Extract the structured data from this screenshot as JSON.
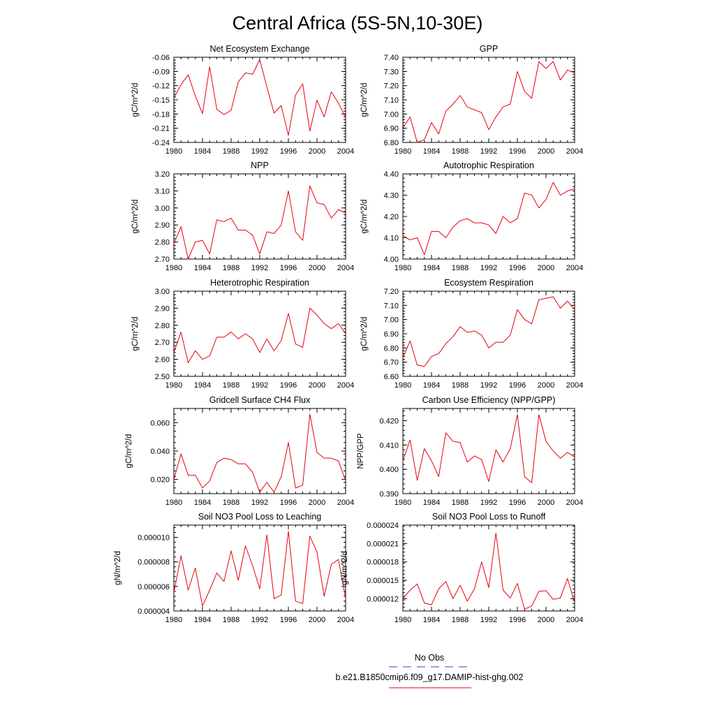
{
  "title": "Central Africa (5S-5N,10-30E)",
  "legend": {
    "entries": [
      {
        "label": "No Obs",
        "color": "#3b3bd1",
        "style": "dashed"
      },
      {
        "label": "b.e21.B1850cmip6.f09_g17.DAMIP-hist-ghg.002",
        "color": "#e8000b",
        "style": "solid"
      }
    ]
  },
  "chart_data": [
    {
      "type": "line",
      "title": "Net Ecosystem Exchange",
      "ylabel": "gC/m^2/d",
      "xlim": [
        1980,
        2004
      ],
      "ylim": [
        -0.24,
        -0.06
      ],
      "xticks": [
        "1980",
        "1984",
        "1988",
        "1992",
        "1996",
        "2000",
        "2004"
      ],
      "yticks": [
        "-0.24",
        "-0.21",
        "-0.18",
        "-0.15",
        "-0.12",
        "-0.09",
        "-0.06"
      ],
      "x": [
        1980,
        1981,
        1982,
        1983,
        1984,
        1985,
        1986,
        1987,
        1988,
        1989,
        1990,
        1991,
        1992,
        1993,
        1994,
        1995,
        1996,
        1997,
        1998,
        1999,
        2000,
        2001,
        2002,
        2003,
        2004
      ],
      "series": [
        {
          "values": [
            -0.146,
            -0.118,
            -0.097,
            -0.142,
            -0.179,
            -0.08,
            -0.17,
            -0.181,
            -0.172,
            -0.112,
            -0.093,
            -0.096,
            -0.065,
            -0.123,
            -0.178,
            -0.162,
            -0.225,
            -0.14,
            -0.116,
            -0.216,
            -0.151,
            -0.186,
            -0.133,
            -0.157,
            -0.187
          ]
        }
      ]
    },
    {
      "type": "line",
      "title": "GPP",
      "ylabel": "gC/m^2/d",
      "xlim": [
        1980,
        2004
      ],
      "ylim": [
        6.8,
        7.4
      ],
      "xticks": [
        "1980",
        "1984",
        "1988",
        "1992",
        "1996",
        "2000",
        "2004"
      ],
      "yticks": [
        "6.80",
        "6.90",
        "7.00",
        "7.10",
        "7.20",
        "7.30",
        "7.40"
      ],
      "x": [
        1980,
        1981,
        1982,
        1983,
        1984,
        1985,
        1986,
        1987,
        1988,
        1989,
        1990,
        1991,
        1992,
        1993,
        1994,
        1995,
        1996,
        1997,
        1998,
        1999,
        2000,
        2001,
        2002,
        2003,
        2004
      ],
      "series": [
        {
          "values": [
            6.9,
            6.98,
            6.8,
            6.82,
            6.94,
            6.86,
            7.02,
            7.07,
            7.13,
            7.05,
            7.03,
            7.01,
            6.89,
            6.98,
            7.05,
            7.07,
            7.3,
            7.16,
            7.11,
            7.37,
            7.32,
            7.37,
            7.24,
            7.31,
            7.29
          ]
        }
      ]
    },
    {
      "type": "line",
      "title": "NPP",
      "ylabel": "gC/m^2/d",
      "xlim": [
        1980,
        2004
      ],
      "ylim": [
        2.7,
        3.2
      ],
      "xticks": [
        "1980",
        "1984",
        "1988",
        "1992",
        "1996",
        "2000",
        "2004"
      ],
      "yticks": [
        "2.70",
        "2.80",
        "2.90",
        "3.00",
        "3.10",
        "3.20"
      ],
      "x": [
        1980,
        1981,
        1982,
        1983,
        1984,
        1985,
        1986,
        1987,
        1988,
        1989,
        1990,
        1991,
        1992,
        1993,
        1994,
        1995,
        1996,
        1997,
        1998,
        1999,
        2000,
        2001,
        2002,
        2003,
        2004
      ],
      "series": [
        {
          "values": [
            2.79,
            2.89,
            2.7,
            2.8,
            2.81,
            2.73,
            2.93,
            2.92,
            2.94,
            2.87,
            2.87,
            2.84,
            2.73,
            2.86,
            2.85,
            2.9,
            3.1,
            2.86,
            2.81,
            3.13,
            3.03,
            3.02,
            2.94,
            2.99,
            2.97
          ]
        }
      ]
    },
    {
      "type": "line",
      "title": "Autotrophic Respiration",
      "ylabel": "gC/m^2/d",
      "xlim": [
        1980,
        2004
      ],
      "ylim": [
        4.0,
        4.4
      ],
      "xticks": [
        "1980",
        "1984",
        "1988",
        "1992",
        "1996",
        "2000",
        "2004"
      ],
      "yticks": [
        "4.00",
        "4.10",
        "4.20",
        "4.30",
        "4.40"
      ],
      "x": [
        1980,
        1981,
        1982,
        1983,
        1984,
        1985,
        1986,
        1987,
        1988,
        1989,
        1990,
        1991,
        1992,
        1993,
        1994,
        1995,
        1996,
        1997,
        1998,
        1999,
        2000,
        2001,
        2002,
        2003,
        2004
      ],
      "series": [
        {
          "values": [
            4.11,
            4.09,
            4.1,
            4.02,
            4.13,
            4.13,
            4.1,
            4.15,
            4.18,
            4.19,
            4.17,
            4.17,
            4.16,
            4.12,
            4.2,
            4.17,
            4.19,
            4.31,
            4.3,
            4.24,
            4.28,
            4.36,
            4.3,
            4.32,
            4.33
          ]
        }
      ]
    },
    {
      "type": "line",
      "title": "Heterotrophic Respiration",
      "ylabel": "gC/m^2/d",
      "xlim": [
        1980,
        2004
      ],
      "ylim": [
        2.5,
        3.0
      ],
      "xticks": [
        "1980",
        "1984",
        "1988",
        "1992",
        "1996",
        "2000",
        "2004"
      ],
      "yticks": [
        "2.50",
        "2.60",
        "2.70",
        "2.80",
        "2.90",
        "3.00"
      ],
      "x": [
        1980,
        1981,
        1982,
        1983,
        1984,
        1985,
        1986,
        1987,
        1988,
        1989,
        1990,
        1991,
        1992,
        1993,
        1994,
        1995,
        1996,
        1997,
        1998,
        1999,
        2000,
        2001,
        2002,
        2003,
        2004
      ],
      "series": [
        {
          "values": [
            2.64,
            2.76,
            2.58,
            2.65,
            2.6,
            2.62,
            2.73,
            2.73,
            2.76,
            2.72,
            2.75,
            2.72,
            2.64,
            2.72,
            2.65,
            2.71,
            2.87,
            2.69,
            2.67,
            2.9,
            2.86,
            2.81,
            2.78,
            2.81,
            2.75
          ]
        }
      ]
    },
    {
      "type": "line",
      "title": "Ecosystem Respiration",
      "ylabel": "gC/m^2/d",
      "xlim": [
        1980,
        2004
      ],
      "ylim": [
        6.6,
        7.2
      ],
      "xticks": [
        "1980",
        "1984",
        "1988",
        "1992",
        "1996",
        "2000",
        "2004"
      ],
      "yticks": [
        "6.60",
        "6.70",
        "6.80",
        "6.90",
        "7.00",
        "7.10",
        "7.20"
      ],
      "x": [
        1980,
        1981,
        1982,
        1983,
        1984,
        1985,
        1986,
        1987,
        1988,
        1989,
        1990,
        1991,
        1992,
        1993,
        1994,
        1995,
        1996,
        1997,
        1998,
        1999,
        2000,
        2001,
        2002,
        2003,
        2004
      ],
      "series": [
        {
          "values": [
            6.73,
            6.85,
            6.68,
            6.67,
            6.74,
            6.76,
            6.83,
            6.88,
            6.95,
            6.91,
            6.92,
            6.89,
            6.8,
            6.84,
            6.84,
            6.89,
            7.07,
            7.0,
            6.97,
            7.14,
            7.15,
            7.16,
            7.08,
            7.13,
            7.07
          ]
        }
      ]
    },
    {
      "type": "line",
      "title": "Gridcell Surface CH4 Flux",
      "ylabel": "gC/m^2/d",
      "xlim": [
        1980,
        2004
      ],
      "ylim": [
        0.01,
        0.07
      ],
      "xticks": [
        "1980",
        "1984",
        "1988",
        "1992",
        "1996",
        "2000",
        "2004"
      ],
      "yticks": [
        "0.020",
        "0.040",
        "0.060"
      ],
      "x": [
        1980,
        1981,
        1982,
        1983,
        1984,
        1985,
        1986,
        1987,
        1988,
        1989,
        1990,
        1991,
        1992,
        1993,
        1994,
        1995,
        1996,
        1997,
        1998,
        1999,
        2000,
        2001,
        2002,
        2003,
        2004
      ],
      "series": [
        {
          "values": [
            0.02,
            0.038,
            0.023,
            0.023,
            0.014,
            0.019,
            0.032,
            0.035,
            0.034,
            0.031,
            0.031,
            0.025,
            0.011,
            0.018,
            0.011,
            0.022,
            0.046,
            0.014,
            0.016,
            0.066,
            0.039,
            0.035,
            0.035,
            0.033,
            0.019
          ]
        }
      ]
    },
    {
      "type": "line",
      "title": "Carbon Use Efficiency (NPP/GPP)",
      "ylabel": "NPP/GPP",
      "xlim": [
        1980,
        2004
      ],
      "ylim": [
        0.39,
        0.425
      ],
      "xticks": [
        "1980",
        "1984",
        "1988",
        "1992",
        "1996",
        "2000",
        "2004"
      ],
      "yticks": [
        "0.390",
        "0.400",
        "0.410",
        "0.420"
      ],
      "x": [
        1980,
        1981,
        1982,
        1983,
        1984,
        1985,
        1986,
        1987,
        1988,
        1989,
        1990,
        1991,
        1992,
        1993,
        1994,
        1995,
        1996,
        1997,
        1998,
        1999,
        2000,
        2001,
        2002,
        2003,
        2004
      ],
      "series": [
        {
          "values": [
            0.4035,
            0.412,
            0.3955,
            0.4085,
            0.4035,
            0.397,
            0.415,
            0.4115,
            0.411,
            0.403,
            0.4055,
            0.404,
            0.395,
            0.408,
            0.403,
            0.4085,
            0.4225,
            0.397,
            0.3945,
            0.4225,
            0.4115,
            0.4075,
            0.4045,
            0.407,
            0.405
          ]
        }
      ]
    },
    {
      "type": "line",
      "title": "Soil NO3 Pool Loss to Leaching",
      "ylabel": "gN/m^2/d",
      "xlim": [
        1980,
        2004
      ],
      "ylim": [
        4e-06,
        1.1e-05
      ],
      "xticks": [
        "1980",
        "1984",
        "1988",
        "1992",
        "1996",
        "2000",
        "2004"
      ],
      "yticks": [
        "0.000004",
        "0.000006",
        "0.000008",
        "0.000010"
      ],
      "x": [
        1980,
        1981,
        1982,
        1983,
        1984,
        1985,
        1986,
        1987,
        1988,
        1989,
        1990,
        1991,
        1992,
        1993,
        1994,
        1995,
        1996,
        1997,
        1998,
        1999,
        2000,
        2001,
        2002,
        2003,
        2004
      ],
      "series": [
        {
          "values": [
            5.5e-06,
            8.5e-06,
            5.7e-06,
            7.5e-06,
            4.4e-06,
            5.7e-06,
            7.1e-06,
            6.4e-06,
            8.9e-06,
            6.5e-06,
            9.3e-06,
            7.7e-06,
            5.8e-06,
            1.02e-05,
            5e-06,
            5.3e-06,
            1.05e-05,
            4.8e-06,
            4.6e-06,
            1.01e-05,
            8.8e-06,
            5.2e-06,
            7.8e-06,
            8.2e-06,
            5e-06
          ]
        }
      ]
    },
    {
      "type": "line",
      "title": "Soil NO3 Pool Loss to Runoff",
      "ylabel": "gN/m^2/d",
      "xlim": [
        1980,
        2004
      ],
      "ylim": [
        1e-05,
        2.4e-05
      ],
      "xticks": [
        "1980",
        "1984",
        "1988",
        "1992",
        "1996",
        "2000",
        "2004"
      ],
      "yticks": [
        "0.000012",
        "0.000015",
        "0.000018",
        "0.000021",
        "0.000024"
      ],
      "x": [
        1980,
        1981,
        1982,
        1983,
        1984,
        1985,
        1986,
        1987,
        1988,
        1989,
        1990,
        1991,
        1992,
        1993,
        1994,
        1995,
        1996,
        1997,
        1998,
        1999,
        2000,
        2001,
        2002,
        2003,
        2004
      ],
      "series": [
        {
          "values": [
            1.2e-05,
            1.34e-05,
            1.44e-05,
            1.13e-05,
            1.1e-05,
            1.36e-05,
            1.48e-05,
            1.2e-05,
            1.42e-05,
            1.16e-05,
            1.36e-05,
            1.8e-05,
            1.38e-05,
            2.27e-05,
            1.34e-05,
            1.21e-05,
            1.45e-05,
            1.03e-05,
            1.08e-05,
            1.32e-05,
            1.33e-05,
            1.19e-05,
            1.21e-05,
            1.53e-05,
            1.13e-05
          ]
        }
      ]
    }
  ]
}
